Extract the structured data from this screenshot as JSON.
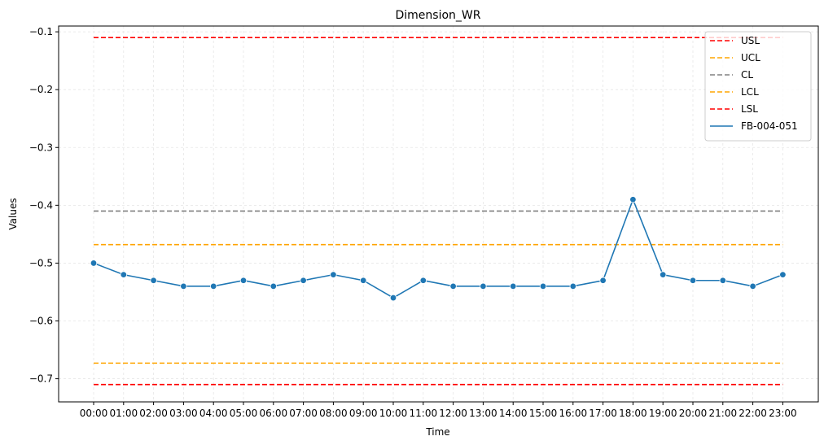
{
  "chart_data": {
    "type": "line",
    "title": "Dimension_WR",
    "xlabel": "Time",
    "ylabel": "Values",
    "categories": [
      "00:00",
      "01:00",
      "02:00",
      "03:00",
      "04:00",
      "05:00",
      "06:00",
      "07:00",
      "08:00",
      "09:00",
      "10:00",
      "11:00",
      "12:00",
      "13:00",
      "14:00",
      "15:00",
      "16:00",
      "17:00",
      "18:00",
      "19:00",
      "20:00",
      "21:00",
      "22:00",
      "23:00"
    ],
    "ylim": [
      -0.74,
      -0.09
    ],
    "yticks": [
      -0.7,
      -0.6,
      -0.5,
      -0.4,
      -0.3,
      -0.2,
      -0.1
    ],
    "ytick_labels": [
      "−0.7",
      "−0.6",
      "−0.5",
      "−0.4",
      "−0.3",
      "−0.2",
      "−0.1"
    ],
    "grid": true,
    "legend_position": "top-right",
    "limit_lines": [
      {
        "name": "USL",
        "value": -0.11,
        "color": "#ff0000"
      },
      {
        "name": "UCL",
        "value": -0.468,
        "color": "#ffa500"
      },
      {
        "name": "CL",
        "value": -0.41,
        "color": "#808080"
      },
      {
        "name": "LCL",
        "value": -0.673,
        "color": "#ffa500"
      },
      {
        "name": "LSL",
        "value": -0.71,
        "color": "#ff0000"
      }
    ],
    "series": [
      {
        "name": "FB-004-051",
        "color": "#1f77b4",
        "values": [
          -0.5,
          -0.52,
          -0.53,
          -0.54,
          -0.54,
          -0.53,
          -0.54,
          -0.53,
          -0.52,
          -0.53,
          -0.56,
          -0.53,
          -0.54,
          -0.54,
          -0.54,
          -0.54,
          -0.54,
          -0.53,
          -0.39,
          -0.52,
          -0.53,
          -0.53,
          -0.54,
          -0.52
        ]
      }
    ]
  }
}
